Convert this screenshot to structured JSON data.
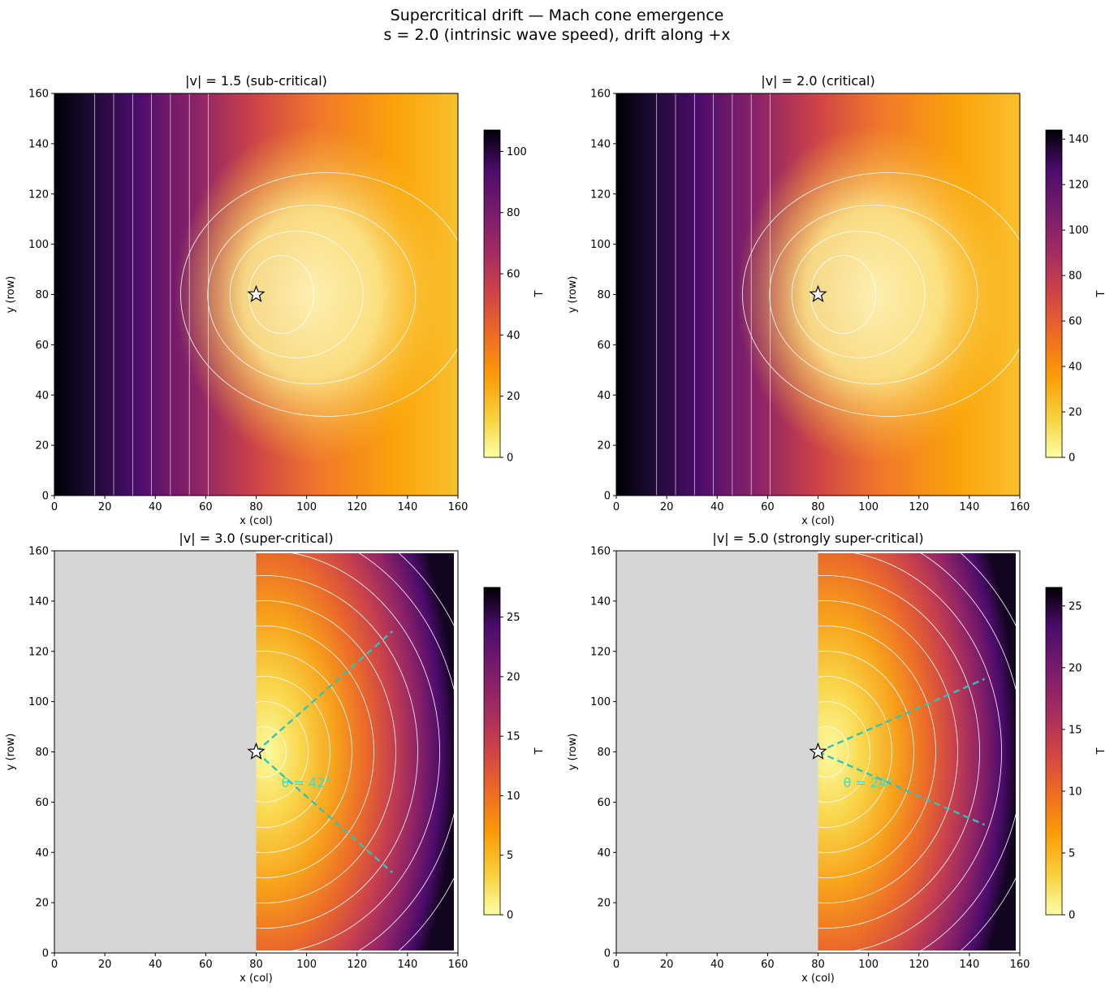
{
  "figure": {
    "title_line1": "Supercritical drift — Mach cone emergence",
    "title_line2": "s = 2.0 (intrinsic wave speed), drift along +x"
  },
  "chart_data": [
    {
      "type": "heatmap",
      "title": "|v| = 1.5 (sub-critical)",
      "v": 1.5,
      "regime": "sub-critical",
      "xlabel": "x (col)",
      "ylabel": "y (row)",
      "xlim": [
        0,
        160
      ],
      "ylim": [
        0,
        160
      ],
      "xticks": [
        0,
        20,
        40,
        60,
        80,
        100,
        120,
        140,
        160
      ],
      "yticks": [
        0,
        20,
        40,
        60,
        80,
        100,
        120,
        140,
        160
      ],
      "colorbar_label": "T",
      "colorbar_range": [
        0,
        107
      ],
      "colorbar_ticks": [
        0,
        20,
        40,
        60,
        80,
        100
      ],
      "colormap": "inferno_r",
      "source": [
        80,
        80
      ],
      "shadow_x_max": null,
      "cone_angle_deg": null,
      "cone_label": ""
    },
    {
      "type": "heatmap",
      "title": "|v| = 2.0 (critical)",
      "v": 2.0,
      "regime": "critical",
      "xlabel": "x (col)",
      "ylabel": "y (row)",
      "xlim": [
        0,
        160
      ],
      "ylim": [
        0,
        160
      ],
      "xticks": [
        0,
        20,
        40,
        60,
        80,
        100,
        120,
        140,
        160
      ],
      "yticks": [
        0,
        20,
        40,
        60,
        80,
        100,
        120,
        140,
        160
      ],
      "colorbar_label": "T",
      "colorbar_range": [
        0,
        144
      ],
      "colorbar_ticks": [
        0,
        20,
        40,
        60,
        80,
        100,
        120,
        140
      ],
      "colormap": "inferno_r",
      "source": [
        80,
        80
      ],
      "shadow_x_max": null,
      "cone_angle_deg": null,
      "cone_label": ""
    },
    {
      "type": "heatmap",
      "title": "|v| = 3.0 (super-critical)",
      "v": 3.0,
      "regime": "super-critical",
      "xlabel": "x (col)",
      "ylabel": "y (row)",
      "xlim": [
        0,
        160
      ],
      "ylim": [
        0,
        160
      ],
      "xticks": [
        0,
        20,
        40,
        60,
        80,
        100,
        120,
        140,
        160
      ],
      "yticks": [
        0,
        20,
        40,
        60,
        80,
        100,
        120,
        140,
        160
      ],
      "colorbar_label": "T",
      "colorbar_range": [
        0,
        27.5
      ],
      "colorbar_ticks": [
        0,
        5,
        10,
        15,
        20,
        25
      ],
      "colormap": "inferno_r",
      "source": [
        80,
        80
      ],
      "shadow_x_max": 80,
      "cone_angle_deg": 42,
      "cone_label": "θ = 42°",
      "cone_lines": [
        [
          [
            80,
            80
          ],
          [
            134,
            128
          ]
        ],
        [
          [
            80,
            80
          ],
          [
            134,
            32
          ]
        ]
      ]
    },
    {
      "type": "heatmap",
      "title": "|v| = 5.0 (strongly super-critical)",
      "v": 5.0,
      "regime": "strongly super-critical",
      "xlabel": "x (col)",
      "ylabel": "y (row)",
      "xlim": [
        0,
        160
      ],
      "ylim": [
        0,
        160
      ],
      "xticks": [
        0,
        20,
        40,
        60,
        80,
        100,
        120,
        140,
        160
      ],
      "yticks": [
        0,
        20,
        40,
        60,
        80,
        100,
        120,
        140,
        160
      ],
      "colorbar_label": "T",
      "colorbar_range": [
        0,
        26.5
      ],
      "colorbar_ticks": [
        0,
        5,
        10,
        15,
        20,
        25
      ],
      "colormap": "inferno_r",
      "source": [
        80,
        80
      ],
      "shadow_x_max": 80,
      "cone_angle_deg": 24,
      "cone_label": "θ = 24°",
      "cone_lines": [
        [
          [
            80,
            80
          ],
          [
            146,
            109
          ]
        ],
        [
          [
            80,
            80
          ],
          [
            146,
            51
          ]
        ]
      ]
    }
  ],
  "colors": {
    "shadow": "#d6d6d6",
    "cone": "#2ec4b6",
    "cone_label": "#33e0d0",
    "contour": "#ffffff"
  }
}
